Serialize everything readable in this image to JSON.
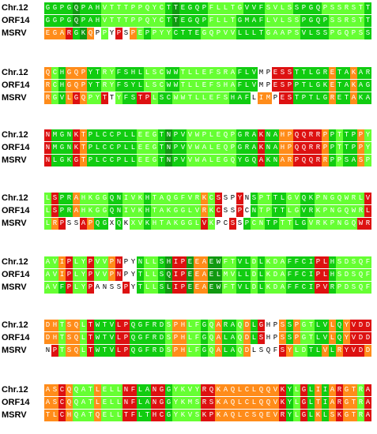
{
  "alignment": {
    "palette": {
      "g": "#11cc11",
      "d": "#119911",
      "y": "#66ff33",
      "o": "#ff8c1a",
      "r": "#dd1111",
      "w": "#ffffff"
    },
    "blocks": [
      {
        "names": [
          "Chr.12",
          "ORF14",
          "MSRV"
        ],
        "rows": [
          {
            "seq": "GGPGQPAHVTTTPPQYCTTEGQPFLLTGVVFSVLSSPGQPSSRSTT",
            "colors": "ggggdgggyyyyyyyyygdggggyyyyygggyyyyggggyyyyyyg"
          },
          {
            "seq": "GGPGQPAHVTTTPPQYCTTEGQPFLLTGMAFLVLSSPGQPSSRSTT",
            "colors": "ggggdgggyyyyyyyyygdggggyyyyggggyyyyyggggyyyyyg"
          },
          {
            "seq": "EGARGKQPPYPSPEPPYYCTTEGQPVVLLLTGAAPSVLSSPGQPSSRSTT",
            "colors": "ooorgdowywrwoygyyyggggyyyyyggggyyyyyggggyyyyyg"
          }
        ]
      },
      {
        "names": [
          "Chr.12",
          "ORF14",
          "MSRV"
        ],
        "rows": [
          {
            "seq": "QCHGQPYTRYFSHLLSCWWTLLEFSRAFLVMPESSTTLGRETAKARAIYM",
            "colors": "oygoooggyyggggyyyggyyyyyyyygggwwrrrgggggoggoggyg"
          },
          {
            "seq": "RCHGQPYTRYFSYLLSCWWTLLEFSHAFLVMPESPPTLGKETAKAGAIYM",
            "colors": "oygoooggyyggggyyyggyyyyyyyygggwwrrrgggggoggoggyg"
          },
          {
            "seq": "RGVLGQPYTTYFSTPLSCWWTLLEFSHAFLIMPESTPTLGRETAKAGAIHL",
            "colors": "oygoroyyrwyggrryggyyyyyyyygggwoowrrgggggoggoggyg"
          }
        ]
      },
      {
        "names": [
          "Chr.12",
          "ORF14",
          "MSRV"
        ],
        "rows": [
          {
            "seq": "NMGNKTPLCCPLLEEGTNPVVWPLEQPGRAKNAHPQQRRPPTTPPYQRQYP",
            "colors": "rgggrogggggggyyygdggyyyyyyygggrggoorrrrogyggoyyryy"
          },
          {
            "seq": "NMGNKTPLCCPLLEEGTNPVVWALEQPGRAKNAHPQQRRPPTTPPYQRQYP",
            "colors": "rgggrogggggggyyygdggyyyyyyygggrggoorrrrogyggoyyryy"
          },
          {
            "seq": "NLGKGTPLCCPLLEEGTNPVVWALEGQYGQAKNARPQQRRPPSASPPYQRKYP",
            "colors": "rgggrogggggggyyygdggyyyyyyygggrggoorrrrogyggoyyryy"
          }
        ]
      },
      {
        "names": [
          "Chr.12",
          "ORF14",
          "MSRV"
        ],
        "rows": [
          {
            "seq": "LSPRAHKGGQNIVKHTAQGFVRKCSSPYNSPTTLGVQKPNGQWRLVQIHRLISE",
            "colors": "yrggoyyyyggyyygyyyyyyyoyrwwrwgyyggyyggyyyyyyyrrggy"
          },
          {
            "seq": "LSPRAHKGGQNIVKHTAKGGLVRKCSSPCNTPTTLGVRKPNGQWRLVQIHRLINE",
            "colors": "yrggoyyyyggyyygyyyyyyyoyrwwrwgyyggyyggyyyyyyyrrggy"
          },
          {
            "seq": "LRPSSAPQGXQKXVKHTAKGGLVKPCSSPCNTPTTLGVRKPNGQWRLVQIHRLINE",
            "colors": "yorwwroggwgwyygyyyyyyyrywwrwgyyggyyggyyyyyyyrrggy"
          }
        ]
      },
      {
        "names": [
          "Chr.12",
          "ORF14",
          "MSRV"
        ],
        "rows": [
          {
            "seq": "AVIPLYPVVPNPYNLLSHIPEEAEWFTVLDLKDAFFCIPLHSDSQFLFAFEDPT",
            "colors": "yyoryyryyorwwgyygdrrdooddyyggygyyyggggrrgyyyyyyryy"
          },
          {
            "seq": "AVIPLYPVVPNPYTLLSQIPEEAELMVLLDLKDAFFCIPLHSDSQFLFAFEDPT",
            "colors": "yyoryyryyorwwgyygdrrdooddyyggygyyyggggrrgyyyyyyryy"
          },
          {
            "seq": "AVFPLYPANSSPYTLLSLIPEEAEWFTVLDLKDAFFCIPVRPDSQFLFAFEDPL",
            "colors": "yygryyrwwwwrwgyygdrrdooddyyggygyyyggggrrgyyyyyyryy"
          }
        ]
      },
      {
        "names": [
          "Chr.12",
          "ORF14",
          "MSRV"
        ],
        "rows": [
          {
            "seq": "DHTSQLTWTVLPQGFRDSPHLFGQARAQDLGHPSSPGTLVLQYVDDLLLATSSE",
            "colors": "ooyooyrgggrrgggggyooyygyoggyogrwwogoyyggogorrroyoy"
          },
          {
            "seq": "DHTSQLTWTVLPQGFRDSPHLFGQALAQDLSHPSSPGTLVLQYVDDLLLATSSE",
            "colors": "ooyooyrgggrrgggggyooyygyoggyogrwwogoyyggogorrroyoy"
          },
          {
            "seq": "NPTSQLTWTVLPQGFRDSPHLFGQALAQDLSQFSYLDTLVLRYVDDLLLVARSE",
            "colors": "wryooyrgggrrgggggyooyygyoggyowwwwroyyggogorrrooyoy"
          }
        ]
      },
      {
        "names": [
          "Chr.12",
          "ORF14",
          "MSRV"
        ],
        "rows": [
          {
            "seq": "ASCQQATLELLNFLANGGYKVYRQKAQLCLQQVKYLGLIIARGTRALSKE",
            "colors": "ooroyyyoyyyrrggrrgyyyyrrooooooooorgyrgogorooyrroo"
          },
          {
            "seq": "ASCQQATLELLNFLANGGYKMSRSKAQLCLQQVKYLGLTIARGTRALSKE",
            "colors": "ooroyyyoyyyrrggrrgyyyyrrooooooooorgyrgogorooyrroo"
          },
          {
            "seq": "TLCHQATQELLTFLTHCGYKVSKPKAQLCSQEVRYLGLKLSKGTRALSEE",
            "colors": "ooroyyyoyyyrrggrrgyyyyrrooooooooorgyrgogorooyrroo"
          }
        ]
      }
    ]
  }
}
